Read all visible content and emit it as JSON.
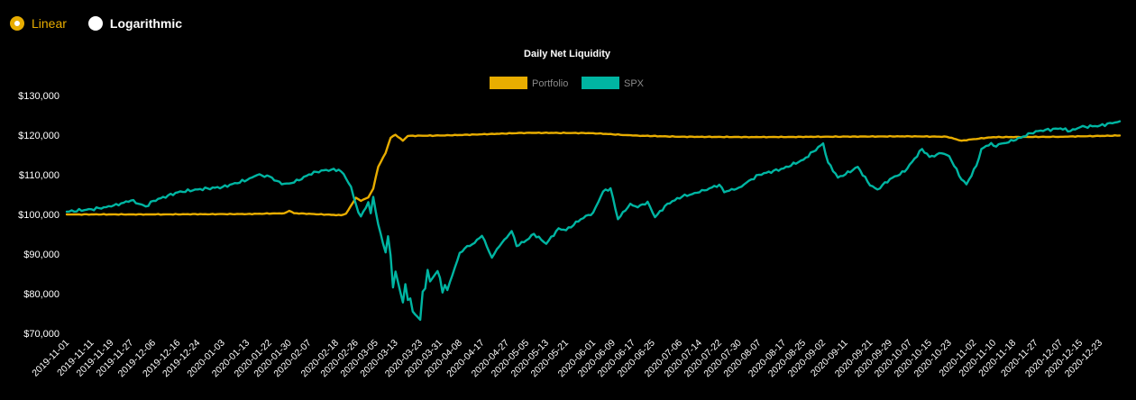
{
  "scale_toggle": {
    "options": [
      {
        "label": "Linear",
        "selected": true
      },
      {
        "label": "Logarithmic",
        "selected": false
      }
    ],
    "accent_color": "#e8ad00"
  },
  "chart_data": {
    "type": "line",
    "title": "Daily Net Liquidity",
    "legend": {
      "placement": "top-center"
    },
    "ylim": [
      70000,
      130000
    ],
    "yticks": [
      70000,
      80000,
      90000,
      100000,
      110000,
      120000,
      130000
    ],
    "ytick_labels": [
      "$70,000",
      "$80,000",
      "$90,000",
      "$100,000",
      "$110,000",
      "$120,000",
      "$130,000"
    ],
    "grid": false,
    "x_start": "2019-11-01",
    "x_end": "2020-12-31",
    "xtick_labels": [
      "2019-11-01",
      "2019-11-11",
      "2019-11-19",
      "2019-11-27",
      "2019-12-06",
      "2019-12-16",
      "2019-12-24",
      "2020-01-03",
      "2020-01-13",
      "2020-01-22",
      "2020-01-30",
      "2020-02-07",
      "2020-02-18",
      "2020-02-26",
      "2020-03-05",
      "2020-03-13",
      "2020-03-23",
      "2020-03-31",
      "2020-04-08",
      "2020-04-17",
      "2020-04-27",
      "2020-05-05",
      "2020-05-13",
      "2020-05-21",
      "2020-06-01",
      "2020-06-09",
      "2020-06-17",
      "2020-06-25",
      "2020-07-06",
      "2020-07-14",
      "2020-07-22",
      "2020-07-30",
      "2020-08-07",
      "2020-08-17",
      "2020-08-25",
      "2020-09-02",
      "2020-09-11",
      "2020-09-21",
      "2020-09-29",
      "2020-10-07",
      "2020-10-15",
      "2020-10-23",
      "2020-11-02",
      "2020-11-10",
      "2020-11-18",
      "2020-11-27",
      "2020-12-07",
      "2020-12-15",
      "2020-12-23"
    ],
    "series": [
      {
        "name": "Portfolio",
        "color": "#e8ad00",
        "points": [
          [
            "2019-11-01",
            100000
          ],
          [
            "2019-12-06",
            100000
          ],
          [
            "2020-01-13",
            100100
          ],
          [
            "2020-01-28",
            100300
          ],
          [
            "2020-01-30",
            100900
          ],
          [
            "2020-02-01",
            100300
          ],
          [
            "2020-02-20",
            99800
          ],
          [
            "2020-02-22",
            100200
          ],
          [
            "2020-02-24",
            102200
          ],
          [
            "2020-02-26",
            104200
          ],
          [
            "2020-02-28",
            103400
          ],
          [
            "2020-03-02",
            104300
          ],
          [
            "2020-03-04",
            106500
          ],
          [
            "2020-03-06",
            112000
          ],
          [
            "2020-03-09",
            115500
          ],
          [
            "2020-03-11",
            119300
          ],
          [
            "2020-03-13",
            120100
          ],
          [
            "2020-03-16",
            118600
          ],
          [
            "2020-03-18",
            119800
          ],
          [
            "2020-03-31",
            119900
          ],
          [
            "2020-04-17",
            120200
          ],
          [
            "2020-05-05",
            120600
          ],
          [
            "2020-06-01",
            120500
          ],
          [
            "2020-06-17",
            119900
          ],
          [
            "2020-07-06",
            119600
          ],
          [
            "2020-08-07",
            119500
          ],
          [
            "2020-09-02",
            119600
          ],
          [
            "2020-10-07",
            119700
          ],
          [
            "2020-10-22",
            119600
          ],
          [
            "2020-10-28",
            118600
          ],
          [
            "2020-11-02",
            119000
          ],
          [
            "2020-11-10",
            119500
          ],
          [
            "2020-12-07",
            119600
          ],
          [
            "2020-12-31",
            119900
          ]
        ]
      },
      {
        "name": "SPX",
        "color": "#00b5a2",
        "points": [
          [
            "2019-11-01",
            100700
          ],
          [
            "2019-11-11",
            101300
          ],
          [
            "2019-11-19",
            102000
          ],
          [
            "2019-11-27",
            103500
          ],
          [
            "2019-12-03",
            102000
          ],
          [
            "2019-12-06",
            103400
          ],
          [
            "2019-12-16",
            105600
          ],
          [
            "2019-12-24",
            106300
          ],
          [
            "2020-01-03",
            106900
          ],
          [
            "2020-01-13",
            108700
          ],
          [
            "2020-01-17",
            109900
          ],
          [
            "2020-01-22",
            109600
          ],
          [
            "2020-01-27",
            107600
          ],
          [
            "2020-01-30",
            107800
          ],
          [
            "2020-02-03",
            108600
          ],
          [
            "2020-02-07",
            110100
          ],
          [
            "2020-02-12",
            111100
          ],
          [
            "2020-02-19",
            111300
          ],
          [
            "2020-02-21",
            110200
          ],
          [
            "2020-02-24",
            107000
          ],
          [
            "2020-02-27",
            100500
          ],
          [
            "2020-02-28",
            99500
          ],
          [
            "2020-03-02",
            103100
          ],
          [
            "2020-03-03",
            100300
          ],
          [
            "2020-03-04",
            104400
          ],
          [
            "2020-03-05",
            100800
          ],
          [
            "2020-03-06",
            97500
          ],
          [
            "2020-03-09",
            90400
          ],
          [
            "2020-03-10",
            94500
          ],
          [
            "2020-03-11",
            89700
          ],
          [
            "2020-03-12",
            81600
          ],
          [
            "2020-03-13",
            85600
          ],
          [
            "2020-03-16",
            77800
          ],
          [
            "2020-03-17",
            82400
          ],
          [
            "2020-03-18",
            78400
          ],
          [
            "2020-03-19",
            78800
          ],
          [
            "2020-03-20",
            75500
          ],
          [
            "2020-03-23",
            73400
          ],
          [
            "2020-03-24",
            80500
          ],
          [
            "2020-03-25",
            81300
          ],
          [
            "2020-03-26",
            86000
          ],
          [
            "2020-03-27",
            83100
          ],
          [
            "2020-03-30",
            85700
          ],
          [
            "2020-03-31",
            84000
          ],
          [
            "2020-04-01",
            80300
          ],
          [
            "2020-04-02",
            82200
          ],
          [
            "2020-04-03",
            80900
          ],
          [
            "2020-04-06",
            86600
          ],
          [
            "2020-04-08",
            90300
          ],
          [
            "2020-04-10",
            91400
          ],
          [
            "2020-04-14",
            92800
          ],
          [
            "2020-04-17",
            94600
          ],
          [
            "2020-04-21",
            89100
          ],
          [
            "2020-04-24",
            91900
          ],
          [
            "2020-04-29",
            95800
          ],
          [
            "2020-05-01",
            92000
          ],
          [
            "2020-05-05",
            93500
          ],
          [
            "2020-05-08",
            95100
          ],
          [
            "2020-05-13",
            92600
          ],
          [
            "2020-05-18",
            96500
          ],
          [
            "2020-05-21",
            96000
          ],
          [
            "2020-05-27",
            98800
          ],
          [
            "2020-06-01",
            100500
          ],
          [
            "2020-06-05",
            105800
          ],
          [
            "2020-06-08",
            106600
          ],
          [
            "2020-06-11",
            98800
          ],
          [
            "2020-06-16",
            102700
          ],
          [
            "2020-06-19",
            101800
          ],
          [
            "2020-06-23",
            103200
          ],
          [
            "2020-06-26",
            99300
          ],
          [
            "2020-07-01",
            102700
          ],
          [
            "2020-07-07",
            104500
          ],
          [
            "2020-07-14",
            105600
          ],
          [
            "2020-07-22",
            107500
          ],
          [
            "2020-07-24",
            105600
          ],
          [
            "2020-07-30",
            106800
          ],
          [
            "2020-08-07",
            110000
          ],
          [
            "2020-08-17",
            111600
          ],
          [
            "2020-08-25",
            113800
          ],
          [
            "2020-09-02",
            117900
          ],
          [
            "2020-09-04",
            113100
          ],
          [
            "2020-09-08",
            109300
          ],
          [
            "2020-09-11",
            110100
          ],
          [
            "2020-09-16",
            112000
          ],
          [
            "2020-09-21",
            107300
          ],
          [
            "2020-09-24",
            106300
          ],
          [
            "2020-09-29",
            108900
          ],
          [
            "2020-10-05",
            110800
          ],
          [
            "2020-10-12",
            116500
          ],
          [
            "2020-10-15",
            114500
          ],
          [
            "2020-10-20",
            115400
          ],
          [
            "2020-10-23",
            114700
          ],
          [
            "2020-10-28",
            108800
          ],
          [
            "2020-10-30",
            107600
          ],
          [
            "2020-11-03",
            112300
          ],
          [
            "2020-11-05",
            116500
          ],
          [
            "2020-11-09",
            118000
          ],
          [
            "2020-11-10",
            117300
          ],
          [
            "2020-11-18",
            118600
          ],
          [
            "2020-11-27",
            121000
          ],
          [
            "2020-12-07",
            121700
          ],
          [
            "2020-12-11",
            121000
          ],
          [
            "2020-12-15",
            122000
          ],
          [
            "2020-12-23",
            122400
          ],
          [
            "2020-12-31",
            123500
          ]
        ]
      }
    ]
  }
}
